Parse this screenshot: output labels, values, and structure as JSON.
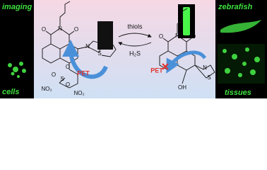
{
  "left_panel": {
    "top_label": "imaging",
    "bottom_label": "cells"
  },
  "right_panel": {
    "top_label": "zebrafish",
    "bottom_label": "tissues"
  },
  "reaction": {
    "forward": "thiols",
    "backward": "H₂S"
  },
  "probe": {
    "pet": "PET",
    "atoms": [
      "O",
      "N",
      "O",
      "N",
      "S",
      "O",
      "S",
      "O",
      "O",
      "NO₂",
      "NO₂"
    ]
  },
  "product": {
    "pet": "PET",
    "atoms": [
      "O",
      "N",
      "O",
      "N",
      "S",
      "OH"
    ]
  }
}
